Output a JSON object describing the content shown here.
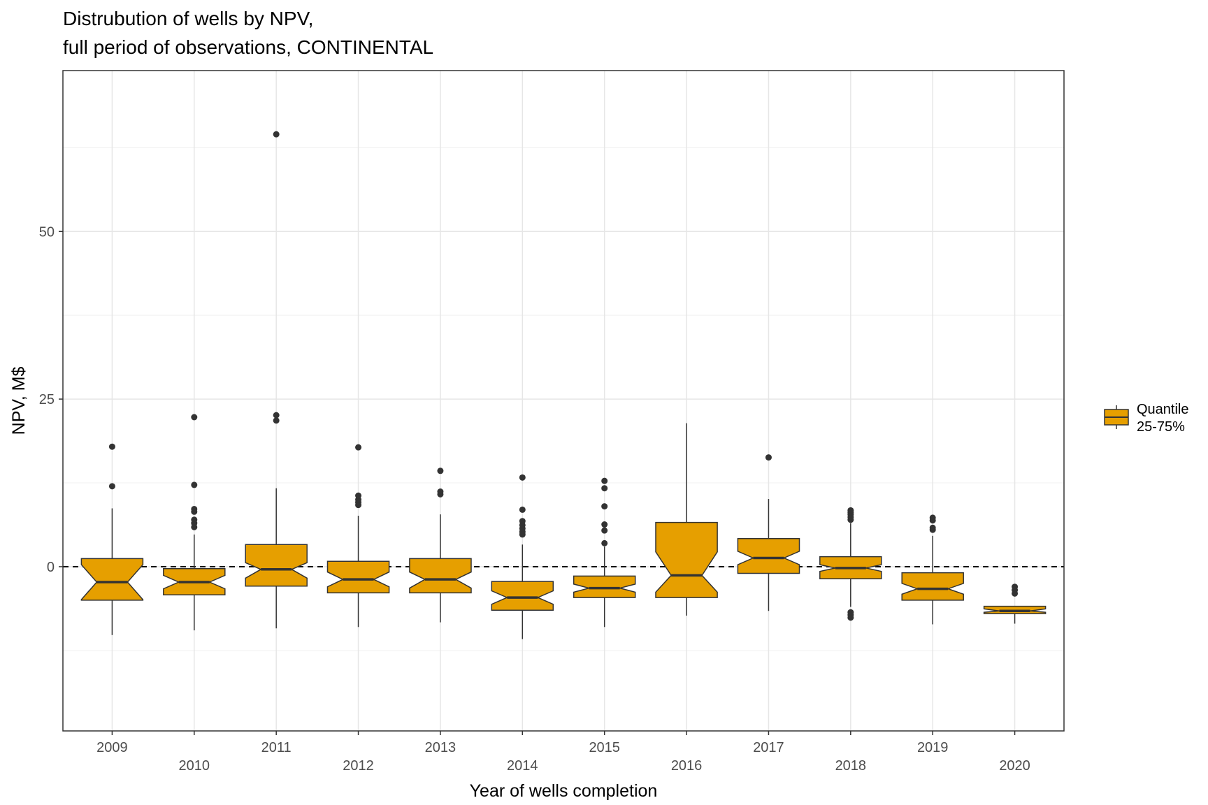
{
  "chart_data": {
    "type": "boxplot",
    "title": [
      "Distrubution of wells by NPV,",
      "full period of observations, CONTINENTAL"
    ],
    "xlabel": "Year of wells completion",
    "ylabel": "NPV, M$",
    "ylim": [
      -24.5,
      74
    ],
    "yticks": [
      0,
      25,
      50
    ],
    "grid": true,
    "notched": true,
    "reference_line": {
      "y": 0,
      "style": "dashed"
    },
    "legend": {
      "position": "right",
      "label": [
        "Quantile",
        "25-75%"
      ]
    },
    "fill_color": "#e69f00",
    "outline_color": "#333333",
    "outlier_color": "#333333",
    "categories": [
      "2009",
      "2010",
      "2011",
      "2012",
      "2013",
      "2014",
      "2015",
      "2016",
      "2017",
      "2018",
      "2019",
      "2020"
    ],
    "boxes": [
      {
        "x": "2009",
        "q1": -5,
        "median": -2.3,
        "q3": 1.2,
        "notch_low": -4.9,
        "notch_high": 0.3,
        "whisker_low": -10.2,
        "whisker_high": 8.7,
        "outliers": [
          12,
          17.9
        ]
      },
      {
        "x": "2010",
        "q1": -4.2,
        "median": -2.3,
        "q3": -0.3,
        "notch_low": -3.3,
        "notch_high": -1.3,
        "whisker_low": -9.5,
        "whisker_high": 4.8,
        "outliers": [
          5.9,
          6.5,
          7.0,
          8.2,
          8.6,
          12.2,
          22.3
        ]
      },
      {
        "x": "2011",
        "q1": -2.9,
        "median": -0.4,
        "q3": 3.3,
        "notch_low": -1.7,
        "notch_high": 0.6,
        "whisker_low": -9.2,
        "whisker_high": 11.7,
        "outliers": [
          21.8,
          22.6,
          64.5
        ]
      },
      {
        "x": "2012",
        "q1": -3.9,
        "median": -1.9,
        "q3": 0.8,
        "notch_low": -3.0,
        "notch_high": -0.8,
        "whisker_low": -9.0,
        "whisker_high": 7.6,
        "outliers": [
          9.2,
          9.6,
          10.0,
          10.6,
          17.8
        ]
      },
      {
        "x": "2013",
        "q1": -3.9,
        "median": -1.9,
        "q3": 1.2,
        "notch_low": -3.2,
        "notch_high": -0.8,
        "whisker_low": -8.3,
        "whisker_high": 7.8,
        "outliers": [
          10.8,
          11.2,
          14.3
        ]
      },
      {
        "x": "2014",
        "q1": -6.5,
        "median": -4.6,
        "q3": -2.2,
        "notch_low": -5.6,
        "notch_high": -3.6,
        "whisker_low": -10.8,
        "whisker_high": 3.3,
        "outliers": [
          4.8,
          5.2,
          5.7,
          6.2,
          6.8,
          8.5,
          13.3
        ]
      },
      {
        "x": "2015",
        "q1": -4.6,
        "median": -3.2,
        "q3": -1.4,
        "notch_low": -3.8,
        "notch_high": -2.6,
        "whisker_low": -9.0,
        "whisker_high": 3.0,
        "outliers": [
          3.5,
          5.4,
          6.3,
          9.0,
          11.7,
          12.8
        ]
      },
      {
        "x": "2016",
        "q1": -4.6,
        "median": -1.3,
        "q3": 6.6,
        "notch_low": -3.8,
        "notch_high": 2.2,
        "whisker_low": -7.3,
        "whisker_high": 21.4,
        "outliers": []
      },
      {
        "x": "2017",
        "q1": -1.0,
        "median": 1.3,
        "q3": 4.2,
        "notch_low": 0.3,
        "notch_high": 2.3,
        "whisker_low": -6.6,
        "whisker_high": 10.1,
        "outliers": [
          16.3
        ]
      },
      {
        "x": "2018",
        "q1": -1.8,
        "median": -0.2,
        "q3": 1.5,
        "notch_low": -0.7,
        "notch_high": 0.3,
        "whisker_low": -6.0,
        "whisker_high": 6.5,
        "outliers": [
          -7.6,
          -7.2,
          -6.8,
          7.0,
          7.4,
          7.8,
          8.1,
          8.4
        ]
      },
      {
        "x": "2019",
        "q1": -5.0,
        "median": -3.3,
        "q3": -0.9,
        "notch_low": -4.1,
        "notch_high": -2.5,
        "whisker_low": -8.6,
        "whisker_high": 4.6,
        "outliers": [
          5.5,
          5.8,
          6.9,
          7.3
        ]
      },
      {
        "x": "2020",
        "q1": -7.0,
        "median": -6.6,
        "q3": -5.9,
        "notch_low": -6.8,
        "notch_high": -6.3,
        "whisker_low": -8.5,
        "whisker_high": -5.9,
        "outliers": [
          -4.0,
          -3.5,
          -3.0
        ]
      }
    ]
  }
}
